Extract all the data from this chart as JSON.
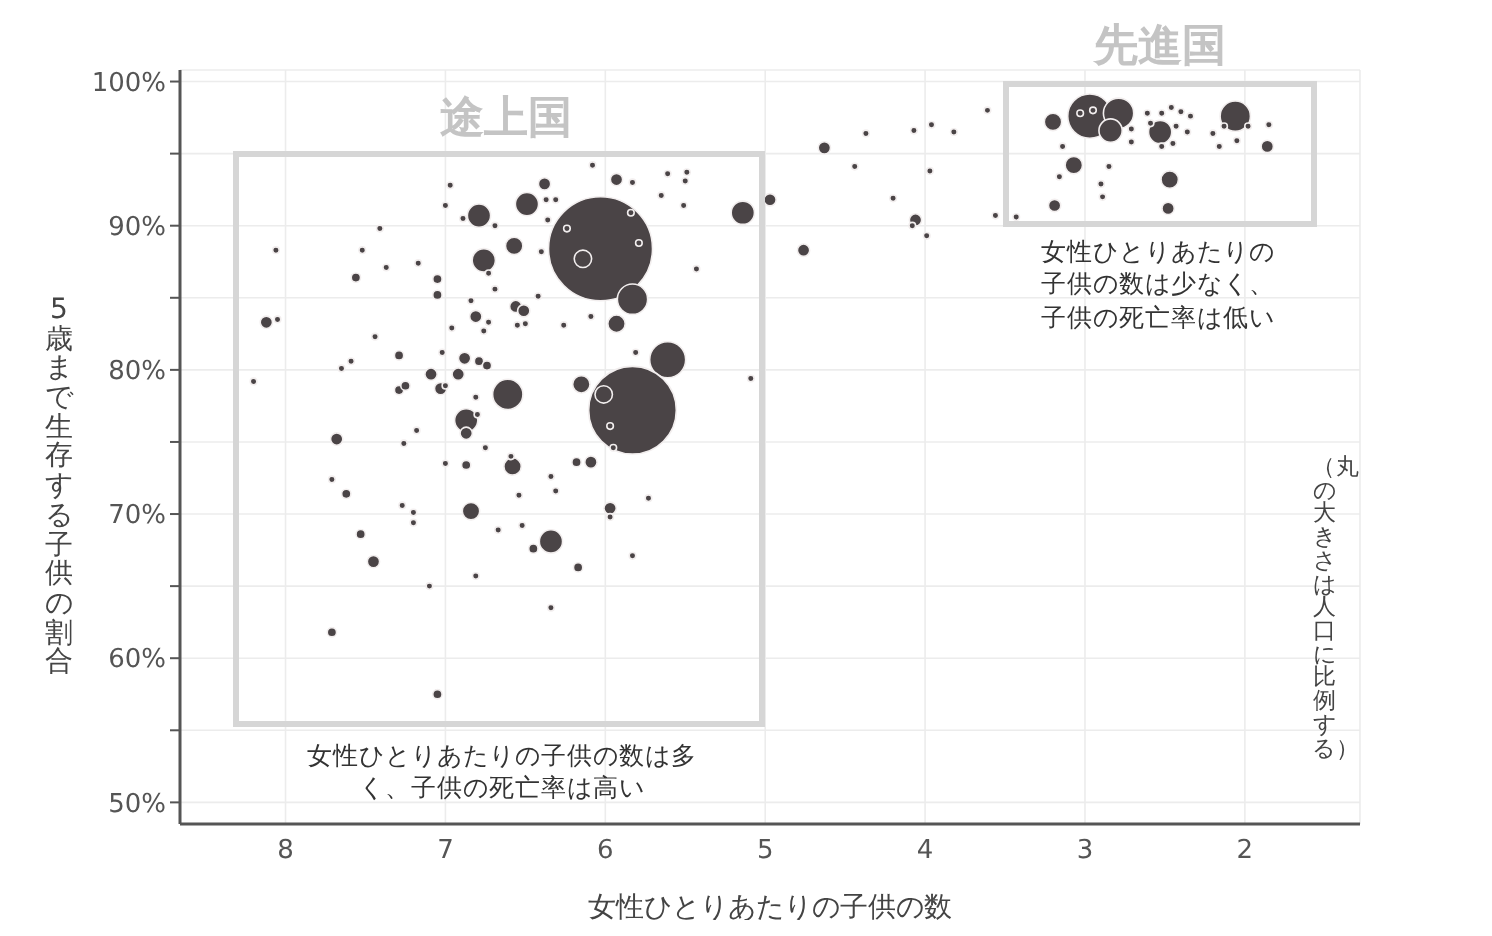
{
  "chart_data": {
    "type": "bubble",
    "xlabel": "女性ひとりあたりの子供の数",
    "ylabel": "5歳まで生存する子供の割合",
    "xlim": [
      8.66,
      1.28
    ],
    "xticks": [
      8,
      7,
      6,
      5,
      4,
      3,
      2
    ],
    "ylim": [
      48.5,
      100.8
    ],
    "yticks": [
      {
        "value": 50,
        "label": "50%"
      },
      {
        "value": 55,
        "label": null
      },
      {
        "value": 60,
        "label": "60%"
      },
      {
        "value": 65,
        "label": null
      },
      {
        "value": 70,
        "label": "70%"
      },
      {
        "value": 75,
        "label": null
      },
      {
        "value": 80,
        "label": "80%"
      },
      {
        "value": 85,
        "label": null
      },
      {
        "value": 90,
        "label": "90%"
      },
      {
        "value": 95,
        "label": null
      },
      {
        "value": 100,
        "label": "100%"
      }
    ],
    "grid": true,
    "annotations": [
      "途上国",
      "先進国",
      "女性ひとりあたりの子供の数は多く、子供の死亡率は高い",
      "女性ひとりあたりの子供の数は少なく、子供の死亡率は低い",
      "（丸の大きさは人口に比例する）"
    ],
    "series": [
      {
        "color": "#4a4446",
        "x": [
          6.08,
          6.97,
          6.38,
          5.93,
          5.83,
          5.61,
          5.49,
          5.5,
          4.97,
          5.14,
          6.49,
          6.37,
          6.31,
          7.0,
          6.79,
          6.89,
          6.69,
          6.36,
          5.65,
          5.51,
          6.03,
          6.14,
          6.24,
          5.79,
          5.84,
          5.83,
          7.41,
          8.06,
          7.52,
          7.17,
          7.37,
          7.56,
          6.76,
          6.57,
          6.4,
          6.73,
          7.05,
          7.05,
          6.69,
          6.84,
          6.42,
          6.56,
          6.51,
          6.81,
          6.73,
          6.96,
          6.76,
          6.55,
          6.5,
          6.26,
          6.09,
          5.93,
          5.43,
          8.12,
          8.05,
          7.44,
          7.29,
          7.02,
          6.88,
          6.79,
          6.74,
          7.65,
          7.59,
          8.2,
          5.81,
          5.61,
          7.09,
          6.92,
          7.29,
          7.25,
          7.03,
          7.0,
          6.61,
          6.15,
          5.83,
          6.01,
          5.97,
          5.95,
          5.09,
          6.81,
          6.87,
          6.8,
          7.68,
          7.26,
          7.18,
          6.87,
          6.75,
          6.58,
          6.59,
          6.87,
          7.0,
          6.18,
          6.09,
          6.34,
          6.31,
          7.71,
          7.62,
          6.54,
          5.97,
          5.97,
          5.73,
          7.27,
          7.2,
          7.2,
          6.84,
          6.67,
          6.52,
          7.53,
          6.34,
          6.45,
          5.83,
          7.45,
          6.17,
          6.81,
          7.1,
          6.34,
          7.71,
          7.05,
          4.63,
          4.37,
          4.44,
          4.07,
          3.96,
          3.82,
          3.97,
          4.2,
          4.06,
          4.08,
          3.99,
          4.76,
          3.61,
          3.56,
          3.43,
          3.2,
          2.97,
          2.79,
          2.84,
          3.03,
          2.95,
          2.71,
          2.71,
          2.61,
          2.52,
          2.46,
          2.4,
          2.34,
          2.53,
          2.43,
          2.36,
          2.52,
          2.45,
          2.59,
          2.06,
          2.13,
          2.2,
          2.16,
          2.05,
          1.98,
          1.85,
          1.86,
          3.14,
          3.07,
          2.85,
          3.16,
          2.9,
          2.89,
          2.47,
          2.48,
          3.19
        ],
        "values": [
          94.2,
          92.8,
          92.9,
          93.2,
          93.0,
          93.6,
          93.7,
          93.1,
          91.8,
          90.9,
          91.5,
          91.8,
          91.8,
          91.4,
          90.7,
          90.5,
          90.0,
          90.4,
          92.1,
          91.4,
          88.4,
          87.7,
          89.8,
          88.8,
          90.9,
          84.9,
          89.8,
          88.3,
          88.3,
          87.4,
          87.1,
          86.4,
          87.6,
          88.6,
          88.2,
          86.7,
          86.3,
          85.2,
          85.6,
          84.8,
          85.1,
          84.4,
          84.1,
          83.7,
          83.3,
          82.9,
          82.7,
          83.1,
          83.2,
          83.1,
          83.7,
          83.2,
          87.0,
          83.3,
          83.5,
          82.3,
          81.0,
          81.2,
          80.8,
          80.6,
          80.3,
          80.1,
          80.6,
          79.2,
          81.2,
          80.7,
          79.7,
          79.7,
          78.6,
          78.9,
          78.7,
          78.9,
          78.3,
          79.0,
          77.2,
          78.3,
          76.1,
          74.6,
          79.4,
          78.1,
          76.5,
          76.9,
          75.2,
          74.9,
          75.8,
          75.6,
          74.6,
          73.3,
          74.0,
          73.4,
          73.5,
          73.6,
          73.6,
          72.6,
          71.6,
          72.4,
          71.4,
          71.3,
          70.4,
          69.8,
          71.1,
          70.6,
          70.1,
          69.4,
          70.2,
          68.9,
          69.2,
          68.6,
          68.1,
          67.6,
          67.1,
          66.7,
          66.3,
          65.7,
          65.0,
          63.5,
          61.8,
          57.5,
          95.4,
          96.4,
          94.1,
          96.6,
          97.0,
          96.5,
          93.8,
          91.9,
          90.4,
          90.0,
          89.3,
          88.3,
          98.0,
          90.7,
          90.6,
          97.2,
          97.6,
          97.8,
          96.6,
          97.8,
          98.0,
          96.7,
          95.8,
          97.8,
          97.8,
          98.2,
          97.9,
          97.6,
          96.5,
          96.9,
          96.5,
          95.5,
          95.7,
          97.1,
          97.6,
          96.9,
          96.4,
          95.5,
          95.9,
          96.9,
          97.0,
          95.5,
          95.5,
          94.2,
          94.1,
          93.4,
          92.9,
          92.0,
          93.2,
          91.2,
          91.4
        ],
        "sizes": [
          0.004,
          0.004,
          0.014,
          0.014,
          0.004,
          0.004,
          0.004,
          0.004,
          0.014,
          0.05,
          0.05,
          0.004,
          0.004,
          0.004,
          0.05,
          0.004,
          0.004,
          0.004,
          0.004,
          0.004,
          1,
          0.028,
          0.004,
          0.004,
          0.004,
          0.085,
          0.004,
          0.004,
          0.004,
          0.004,
          0.004,
          0.008,
          0.05,
          0.028,
          0.004,
          0.004,
          0.008,
          0.008,
          0.004,
          0.004,
          0.004,
          0.014,
          0.014,
          0.014,
          0.004,
          0.004,
          0.004,
          0.004,
          0.004,
          0.004,
          0.004,
          0.028,
          0.004,
          0.014,
          0.004,
          0.004,
          0.008,
          0.004,
          0.014,
          0.008,
          0.008,
          0.004,
          0.004,
          0.004,
          0.004,
          0.12,
          0.014,
          0.014,
          0.008,
          0.008,
          0.014,
          0.004,
          0.085,
          0.028,
          0.71,
          0.028,
          0.004,
          0.004,
          0.004,
          0.004,
          0.05,
          0.004,
          0.014,
          0.004,
          0.004,
          0.014,
          0.004,
          0.028,
          0.004,
          0.008,
          0.004,
          0.008,
          0.014,
          0.004,
          0.004,
          0.004,
          0.008,
          0.004,
          0.014,
          0.004,
          0.004,
          0.004,
          0.004,
          0.004,
          0.028,
          0.004,
          0.004,
          0.008,
          0.05,
          0.008,
          0.004,
          0.014,
          0.008,
          0.004,
          0.004,
          0.004,
          0.008,
          0.008,
          0.014,
          0.004,
          0.004,
          0.004,
          0.004,
          0.004,
          0.004,
          0.004,
          0.014,
          0.004,
          0.004,
          0.014,
          0.004,
          0.004,
          0.004,
          0.028,
          0.18,
          0.085,
          0.05,
          0.004,
          0.004,
          0.004,
          0.004,
          0.004,
          0.004,
          0.004,
          0.004,
          0.004,
          0.05,
          0.004,
          0.004,
          0.004,
          0.004,
          0.004,
          0.085,
          0.004,
          0.004,
          0.004,
          0.004,
          0.004,
          0.004,
          0.014,
          0.004,
          0.028,
          0.004,
          0.004,
          0.004,
          0.004,
          0.028,
          0.014,
          0.014
        ]
      }
    ]
  }
}
